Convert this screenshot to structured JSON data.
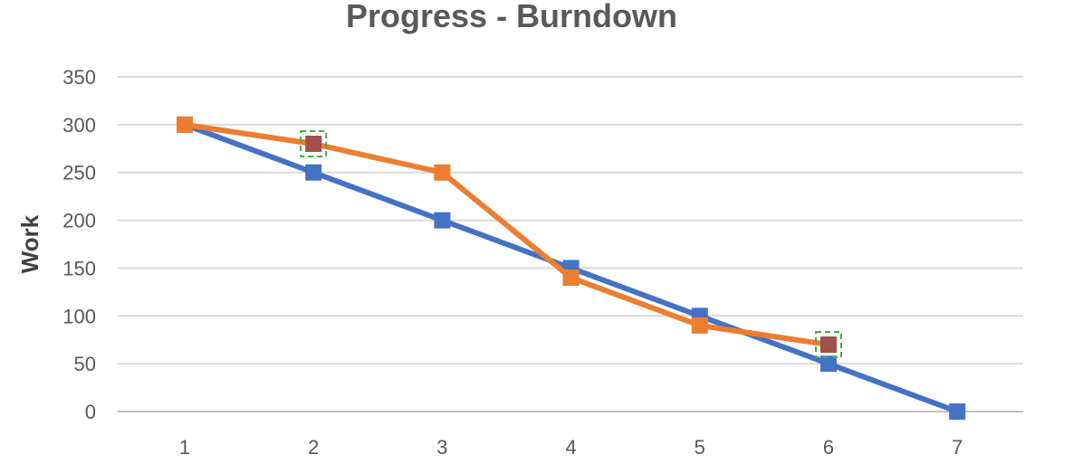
{
  "chart_data": {
    "type": "line",
    "title": "Progress - Burndown",
    "xlabel": "",
    "ylabel": "Work",
    "categories": [
      "1",
      "2",
      "3",
      "4",
      "5",
      "6",
      "7"
    ],
    "ylim": [
      0,
      350
    ],
    "yticks": [
      0,
      50,
      100,
      150,
      200,
      250,
      300,
      350
    ],
    "grid": true,
    "legend": "none",
    "series": [
      {
        "color": "#4472C4",
        "values": [
          300,
          250,
          200,
          150,
          100,
          50,
          0
        ]
      },
      {
        "color": "#ED7D31",
        "values": [
          300,
          280,
          250,
          140,
          90,
          70,
          null
        ],
        "selected_points": [
          1,
          5
        ],
        "selected_marker_color": "#A0524A"
      }
    ]
  }
}
